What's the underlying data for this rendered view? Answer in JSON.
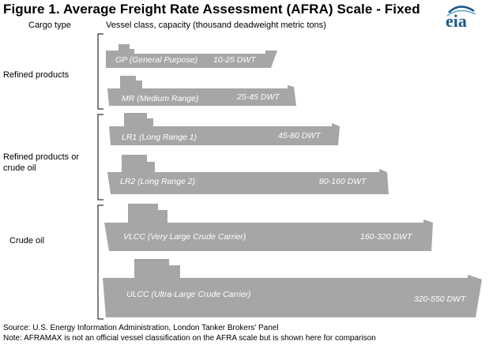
{
  "title": "Figure 1. Average Freight Rate Assessment (AFRA) Scale - Fixed",
  "headers": {
    "cargo_type": "Cargo type",
    "vessel_class": "Vessel class, capacity (thousand deadweight metric tons)"
  },
  "logo": {
    "text": "eia"
  },
  "cargo_groups": [
    {
      "label": "Refined products"
    },
    {
      "label": "Refined products or crude oil"
    },
    {
      "label": "Crude oil"
    }
  ],
  "vessels": [
    {
      "name": "GP (General Purpose)",
      "capacity": "10-25 DWT"
    },
    {
      "name": "MR (Medium Range)",
      "capacity": "25-45 DWT"
    },
    {
      "name": "LR1 (Long Range 1)",
      "capacity": "45-80 DWT"
    },
    {
      "name": "LR2 (Long Range 2)",
      "capacity": "80-160 DWT"
    },
    {
      "name": "VLCC (Very Large Crude Carrier)",
      "capacity": "160-320 DWT"
    },
    {
      "name": "ULCC (Ultra-Large Crude Carrier)",
      "capacity": "320-550 DWT"
    }
  ],
  "colors": {
    "ship": "#a6a6a6",
    "bracket": "#000000",
    "logo": "#1a5a8a"
  },
  "footer": {
    "source": "Source: U.S. Energy Information Administration, London Tanker Brokers' Panel",
    "note": "Note: AFRAMAX is not an official vessel classification on the AFRA scale but is shown here for comparison"
  }
}
